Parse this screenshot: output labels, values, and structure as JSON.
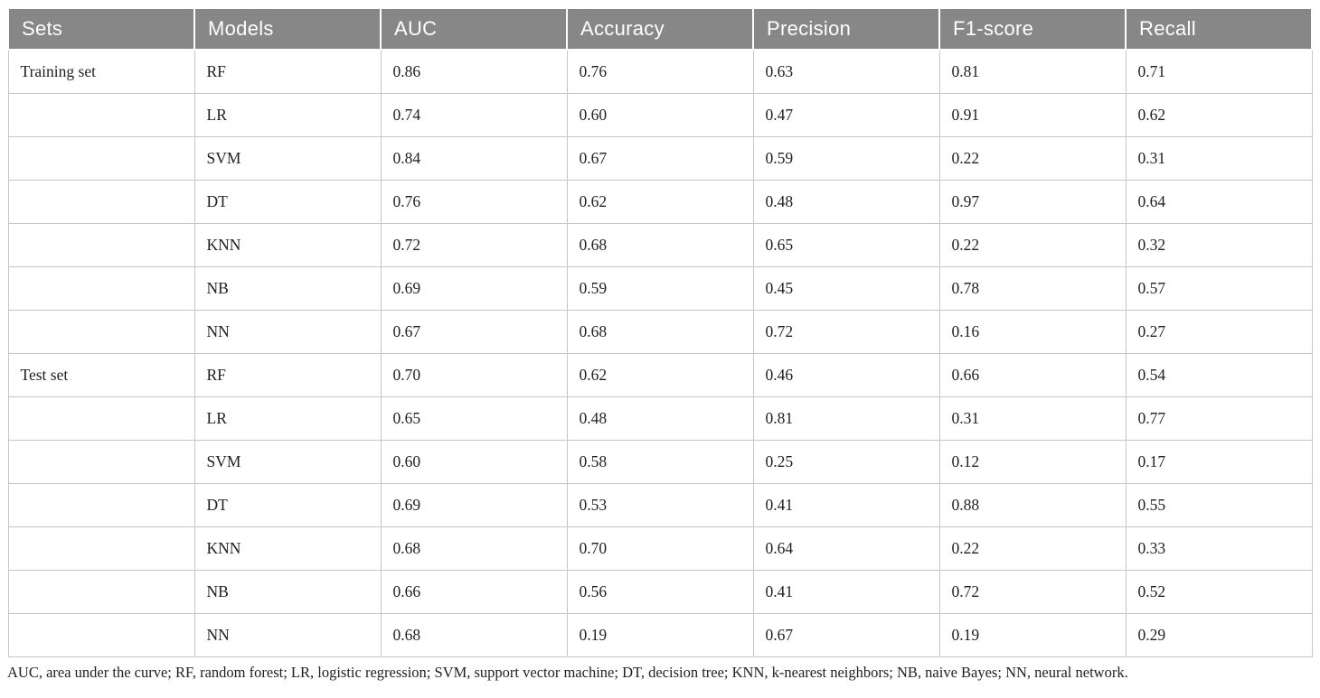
{
  "table": {
    "columns": [
      "Sets",
      "Models",
      "AUC",
      "Accuracy",
      "Precision",
      "F1-score",
      "Recall"
    ],
    "column_keys": [
      "set",
      "model",
      "auc",
      "accuracy",
      "precision",
      "f1",
      "recall"
    ],
    "rows": [
      {
        "set": "Training set",
        "model": "RF",
        "auc": "0.86",
        "accuracy": "0.76",
        "precision": "0.63",
        "f1": "0.81",
        "recall": "0.71"
      },
      {
        "set": "",
        "model": "LR",
        "auc": "0.74",
        "accuracy": "0.60",
        "precision": "0.47",
        "f1": "0.91",
        "recall": "0.62"
      },
      {
        "set": "",
        "model": "SVM",
        "auc": "0.84",
        "accuracy": "0.67",
        "precision": "0.59",
        "f1": "0.22",
        "recall": "0.31"
      },
      {
        "set": "",
        "model": "DT",
        "auc": "0.76",
        "accuracy": "0.62",
        "precision": "0.48",
        "f1": "0.97",
        "recall": "0.64"
      },
      {
        "set": "",
        "model": "KNN",
        "auc": "0.72",
        "accuracy": "0.68",
        "precision": "0.65",
        "f1": "0.22",
        "recall": "0.32"
      },
      {
        "set": "",
        "model": "NB",
        "auc": "0.69",
        "accuracy": "0.59",
        "precision": "0.45",
        "f1": "0.78",
        "recall": "0.57"
      },
      {
        "set": "",
        "model": "NN",
        "auc": "0.67",
        "accuracy": "0.68",
        "precision": "0.72",
        "f1": "0.16",
        "recall": "0.27"
      },
      {
        "set": "Test set",
        "model": "RF",
        "auc": "0.70",
        "accuracy": "0.62",
        "precision": "0.46",
        "f1": "0.66",
        "recall": "0.54"
      },
      {
        "set": "",
        "model": "LR",
        "auc": "0.65",
        "accuracy": "0.48",
        "precision": "0.81",
        "f1": "0.31",
        "recall": "0.77"
      },
      {
        "set": "",
        "model": "SVM",
        "auc": "0.60",
        "accuracy": "0.58",
        "precision": "0.25",
        "f1": "0.12",
        "recall": "0.17"
      },
      {
        "set": "",
        "model": "DT",
        "auc": "0.69",
        "accuracy": "0.53",
        "precision": "0.41",
        "f1": "0.88",
        "recall": "0.55"
      },
      {
        "set": "",
        "model": "KNN",
        "auc": "0.68",
        "accuracy": "0.70",
        "precision": "0.64",
        "f1": "0.22",
        "recall": "0.33"
      },
      {
        "set": "",
        "model": "NB",
        "auc": "0.66",
        "accuracy": "0.56",
        "precision": "0.41",
        "f1": "0.72",
        "recall": "0.52"
      },
      {
        "set": "",
        "model": "NN",
        "auc": "0.68",
        "accuracy": "0.19",
        "precision": "0.67",
        "f1": "0.19",
        "recall": "0.29"
      }
    ],
    "footnote": "AUC, area under the curve; RF, random forest; LR, logistic regression; SVM, support vector machine; DT, decision tree; KNN, k-nearest neighbors; NB, naive Bayes; NN, neural network.",
    "colors": {
      "header_bg": "#878787",
      "header_text": "#ffffff",
      "cell_border": "#c6c6c6",
      "body_text": "#1f1f1f"
    }
  }
}
